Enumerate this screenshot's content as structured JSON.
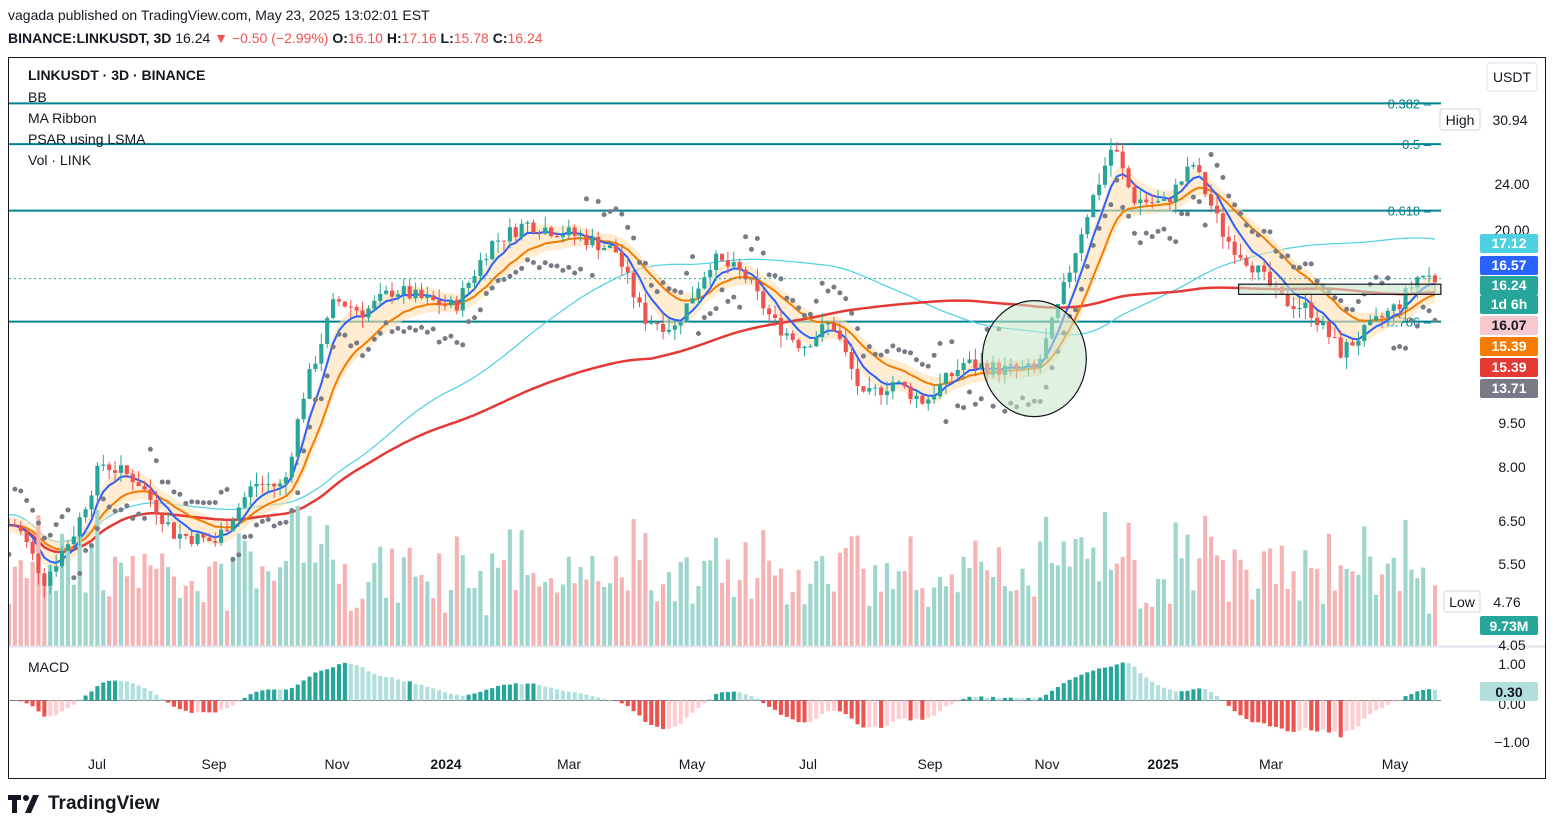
{
  "header": {
    "publish_line": "vagada published on TradingView.com, May 23, 2025 13:02:01 EST",
    "symbol": "BINANCE:LINKUSDT, 3D",
    "last": "16.24",
    "change": "−0.50 (−2.99%)",
    "o_label": "O:",
    "o": "16.10",
    "h_label": "H:",
    "h": "17.16",
    "l_label": "L:",
    "l": "15.78",
    "c_label": "C:",
    "c": "16.24"
  },
  "legend": {
    "title": "LINKUSDT · 3D · BINANCE",
    "items": [
      "BB",
      "MA Ribbon",
      "PSAR using LSMA",
      "Vol · LINK"
    ],
    "macd": "MACD"
  },
  "scale": {
    "currency": "USDT",
    "high_label": "High",
    "high_value": "30.94",
    "low_label": "Low",
    "low_value": "4.76",
    "price_ticks": [
      "24.00",
      "20.00",
      "9.50",
      "8.00",
      "6.50",
      "5.50",
      "4.05"
    ],
    "macd_ticks": [
      "1.00",
      "0.00",
      "−1.00"
    ],
    "badges": [
      {
        "text": "17.12",
        "color": "#4dd0e1"
      },
      {
        "text": "16.57",
        "color": "#2962ff"
      },
      {
        "text": "16.24",
        "color": "#26a69a"
      },
      {
        "text": "1d 6h",
        "color": "#26a69a"
      },
      {
        "text": "16.07",
        "color": "#f8c8d0"
      },
      {
        "text": "15.39",
        "color": "#f57c00"
      },
      {
        "text": "15.39",
        "color": "#e53935"
      },
      {
        "text": "13.71",
        "color": "#787b86"
      }
    ],
    "vol_badge": "9.73M",
    "macd_badge": "0.30"
  },
  "fib_levels": [
    {
      "label": "0.382",
      "price": 31.5
    },
    {
      "label": "0.5",
      "price": 27.0
    },
    {
      "label": "0.618",
      "price": 21.0
    },
    {
      "label": "0.786",
      "price": 13.8
    }
  ],
  "time_axis": [
    "Jul",
    "Sep",
    "Nov",
    "2024",
    "Mar",
    "May",
    "Jul",
    "Sep",
    "Nov",
    "2025",
    "Mar",
    "May"
  ],
  "footer": {
    "brand": "TradingView"
  },
  "colors": {
    "up": "#26a69a",
    "down": "#ef5350",
    "fib": "#00838f",
    "bb": "#4dd0e1",
    "ma_fast": "#2962ff",
    "ma_mid": "#f57c00",
    "ma_slow": "#e53935",
    "psar": "#787b86"
  },
  "chart_data": {
    "type": "candlestick",
    "symbol": "LINKUSDT",
    "interval": "3D",
    "y_scale": "log",
    "ylim": [
      4.05,
      36.0
    ],
    "x_range": [
      "2023-05-28",
      "2025-05-23"
    ],
    "last_price": 16.24,
    "series_close": [
      {
        "date": "2023-06-01",
        "close": 6.4
      },
      {
        "date": "2023-06-15",
        "close": 5.2
      },
      {
        "date": "2023-07-01",
        "close": 6.3
      },
      {
        "date": "2023-07-14",
        "close": 8.1
      },
      {
        "date": "2023-08-01",
        "close": 7.6
      },
      {
        "date": "2023-08-20",
        "close": 6.2
      },
      {
        "date": "2023-09-10",
        "close": 6.0
      },
      {
        "date": "2023-09-30",
        "close": 7.5
      },
      {
        "date": "2023-10-15",
        "close": 7.4
      },
      {
        "date": "2023-10-25",
        "close": 10.5
      },
      {
        "date": "2023-11-10",
        "close": 15.0
      },
      {
        "date": "2023-11-25",
        "close": 14.3
      },
      {
        "date": "2023-12-10",
        "close": 15.6
      },
      {
        "date": "2023-12-25",
        "close": 15.0
      },
      {
        "date": "2024-01-10",
        "close": 14.6
      },
      {
        "date": "2024-01-28",
        "close": 18.5
      },
      {
        "date": "2024-02-15",
        "close": 20.0
      },
      {
        "date": "2024-03-01",
        "close": 19.5
      },
      {
        "date": "2024-03-15",
        "close": 19.0
      },
      {
        "date": "2024-04-01",
        "close": 18.0
      },
      {
        "date": "2024-04-15",
        "close": 14.0
      },
      {
        "date": "2024-05-01",
        "close": 13.5
      },
      {
        "date": "2024-05-20",
        "close": 17.5
      },
      {
        "date": "2024-06-05",
        "close": 16.5
      },
      {
        "date": "2024-06-20",
        "close": 13.8
      },
      {
        "date": "2024-07-05",
        "close": 12.6
      },
      {
        "date": "2024-07-20",
        "close": 13.8
      },
      {
        "date": "2024-08-05",
        "close": 10.3
      },
      {
        "date": "2024-08-20",
        "close": 11.0
      },
      {
        "date": "2024-09-05",
        "close": 10.2
      },
      {
        "date": "2024-09-25",
        "close": 11.8
      },
      {
        "date": "2024-10-15",
        "close": 11.5
      },
      {
        "date": "2024-11-01",
        "close": 11.5
      },
      {
        "date": "2024-11-12",
        "close": 14.5
      },
      {
        "date": "2024-11-25",
        "close": 20.0
      },
      {
        "date": "2024-12-10",
        "close": 27.0
      },
      {
        "date": "2024-12-20",
        "close": 22.0
      },
      {
        "date": "2025-01-05",
        "close": 21.5
      },
      {
        "date": "2025-01-20",
        "close": 25.0
      },
      {
        "date": "2025-02-05",
        "close": 19.0
      },
      {
        "date": "2025-02-20",
        "close": 17.0
      },
      {
        "date": "2025-03-05",
        "close": 15.0
      },
      {
        "date": "2025-03-20",
        "close": 14.5
      },
      {
        "date": "2025-04-05",
        "close": 12.3
      },
      {
        "date": "2025-04-20",
        "close": 13.5
      },
      {
        "date": "2025-05-05",
        "close": 14.8
      },
      {
        "date": "2025-05-15",
        "close": 16.5
      },
      {
        "date": "2025-05-23",
        "close": 16.24
      }
    ],
    "annotations": [
      {
        "type": "circle",
        "date": "2024-10-31",
        "price": 12.0
      },
      {
        "type": "box",
        "from": "2025-02-12",
        "to": "2025-05-26",
        "price_low": 15.3,
        "price_high": 15.9
      }
    ]
  }
}
